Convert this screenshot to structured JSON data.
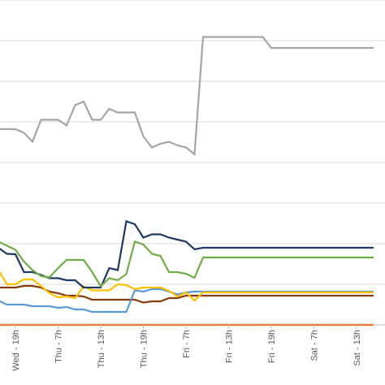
{
  "chart_data": {
    "type": "line",
    "title": "",
    "xlabel": "",
    "ylabel": "",
    "ylim": [
      0,
      8
    ],
    "grid": true,
    "legend": "none",
    "x_ticks": [
      "Wed - 19h",
      "Thu - 7h",
      "Thu - 13h",
      "Thu - 19h",
      "Fri - 7h",
      "Fri - 13h",
      "Fri - 19h",
      "Sat - 7h",
      "Sat - 13h"
    ],
    "x": [
      0,
      1,
      2,
      3,
      4,
      5,
      6,
      7,
      8,
      9,
      10,
      11,
      12,
      13,
      14,
      15,
      16,
      17,
      18,
      19,
      20,
      21,
      22,
      23,
      24,
      25,
      26,
      27,
      28,
      29,
      30,
      31,
      32,
      33,
      34,
      35,
      36,
      37,
      38,
      39,
      40,
      41,
      42,
      43,
      44
    ],
    "series": [
      {
        "color": "#a5a5a5",
        "values": [
          4.82,
          4.82,
          4.82,
          4.73,
          4.51,
          5.05,
          5.05,
          5.05,
          4.91,
          5.41,
          5.5,
          5.05,
          5.05,
          5.32,
          5.23,
          5.23,
          5.23,
          4.64,
          4.37,
          4.46,
          4.51,
          4.42,
          4.37,
          4.2,
          7.09,
          7.09,
          7.09,
          7.09,
          7.09,
          7.09,
          7.09,
          7.09,
          6.82,
          6.82,
          6.82,
          6.82,
          6.82,
          6.82,
          6.82,
          6.82,
          6.82,
          6.82,
          6.82,
          6.82,
          6.82
        ]
      },
      {
        "color": "#70ad47",
        "values": [
          2.05,
          1.95,
          1.85,
          1.56,
          1.35,
          1.2,
          1.17,
          1.4,
          1.6,
          1.6,
          1.6,
          1.3,
          0.95,
          1.15,
          1.1,
          1.25,
          2.05,
          1.98,
          1.75,
          1.7,
          1.3,
          1.3,
          1.26,
          1.16,
          1.66,
          1.66,
          1.66,
          1.66,
          1.66,
          1.66,
          1.66,
          1.66,
          1.66,
          1.66,
          1.66,
          1.66,
          1.66,
          1.66,
          1.66,
          1.66,
          1.66,
          1.66,
          1.66,
          1.66,
          1.66
        ]
      },
      {
        "color": "#1f3864",
        "values": [
          1.9,
          1.75,
          1.74,
          1.3,
          1.3,
          1.23,
          1.15,
          1.15,
          1.1,
          1.1,
          0.92,
          0.92,
          0.92,
          1.4,
          1.35,
          2.55,
          2.48,
          2.15,
          2.23,
          2.23,
          2.15,
          2.1,
          2.05,
          1.86,
          1.9,
          1.9,
          1.9,
          1.9,
          1.9,
          1.9,
          1.9,
          1.9,
          1.9,
          1.9,
          1.9,
          1.9,
          1.9,
          1.9,
          1.9,
          1.9,
          1.9,
          1.9,
          1.9,
          1.9,
          1.9
        ]
      },
      {
        "color": "#ffc000",
        "values": [
          1.35,
          1.0,
          1.0,
          1.12,
          1.12,
          0.96,
          0.78,
          0.68,
          0.7,
          0.66,
          0.95,
          0.85,
          0.85,
          0.85,
          1.0,
          0.98,
          0.88,
          0.92,
          0.92,
          0.92,
          0.84,
          0.7,
          0.8,
          0.6,
          0.8,
          0.8,
          0.8,
          0.8,
          0.8,
          0.8,
          0.8,
          0.8,
          0.8,
          0.8,
          0.8,
          0.8,
          0.8,
          0.8,
          0.8,
          0.8,
          0.8,
          0.8,
          0.8,
          0.8,
          0.8
        ]
      },
      {
        "color": "#5b9bd5",
        "values": [
          0.6,
          0.5,
          0.5,
          0.5,
          0.46,
          0.46,
          0.46,
          0.42,
          0.44,
          0.38,
          0.38,
          0.32,
          0.32,
          0.32,
          0.32,
          0.32,
          0.85,
          0.82,
          0.88,
          0.88,
          0.82,
          0.75,
          0.8,
          0.82,
          0.82,
          0.82,
          0.82,
          0.82,
          0.82,
          0.82,
          0.82,
          0.82,
          0.82,
          0.82,
          0.82,
          0.82,
          0.82,
          0.82,
          0.82,
          0.82,
          0.82,
          0.82,
          0.82,
          0.82,
          0.82
        ]
      },
      {
        "color": "#843c0c",
        "values": [
          0.92,
          0.92,
          0.92,
          0.96,
          0.96,
          0.92,
          0.82,
          0.78,
          0.72,
          0.72,
          0.7,
          0.62,
          0.62,
          0.62,
          0.62,
          0.62,
          0.62,
          0.55,
          0.58,
          0.58,
          0.66,
          0.66,
          0.72,
          0.72,
          0.72,
          0.72,
          0.72,
          0.72,
          0.72,
          0.72,
          0.72,
          0.72,
          0.72,
          0.72,
          0.72,
          0.72,
          0.72,
          0.72,
          0.72,
          0.72,
          0.72,
          0.72,
          0.72,
          0.72,
          0.72
        ]
      },
      {
        "color": "#ed7d31",
        "values": [
          0,
          0,
          0,
          0,
          0,
          0,
          0,
          0,
          0,
          0,
          0,
          0,
          0,
          0,
          0,
          0,
          0,
          0,
          0,
          0,
          0,
          0,
          0,
          0,
          0,
          0,
          0,
          0,
          0,
          0,
          0,
          0,
          0,
          0,
          0,
          0,
          0,
          0,
          0,
          0,
          0,
          0,
          0,
          0,
          0
        ]
      },
      {
        "color": "#4472c4",
        "values": [
          0,
          0,
          0,
          0,
          0,
          0,
          0,
          0,
          0,
          0,
          0,
          0,
          0,
          0,
          0,
          0,
          0,
          0,
          0,
          0,
          0,
          0,
          0,
          0,
          0,
          0,
          0,
          0,
          0,
          0,
          0,
          0,
          0,
          0,
          0,
          0,
          0,
          0,
          0,
          0,
          0,
          0,
          0,
          0,
          0
        ]
      }
    ]
  }
}
